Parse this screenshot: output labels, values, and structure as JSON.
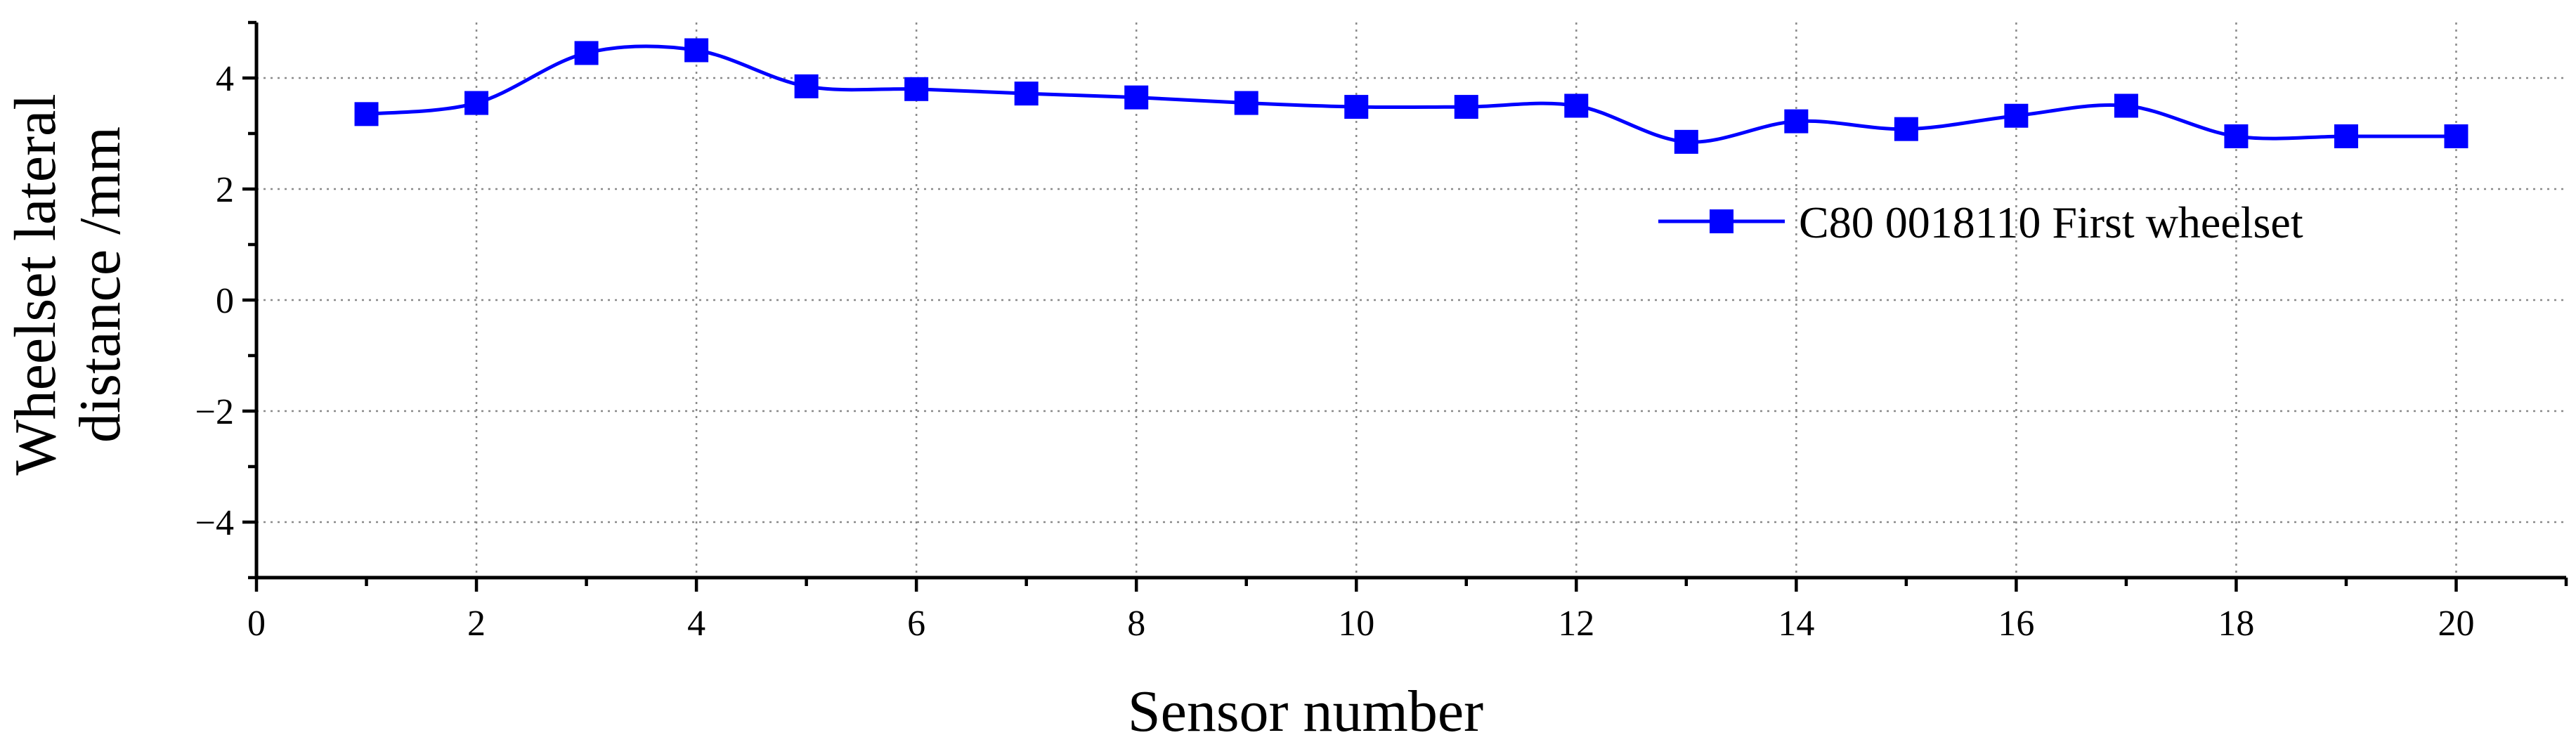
{
  "chart_data": {
    "type": "line",
    "title": "",
    "xlabel": "Sensor number",
    "ylabel_lines": [
      "Wheelset lateral",
      "distance /mm"
    ],
    "xlim": [
      0,
      21
    ],
    "ylim": [
      -5,
      5
    ],
    "xticks": [
      0,
      2,
      4,
      6,
      8,
      10,
      12,
      14,
      16,
      18,
      20
    ],
    "yticks": [
      -4,
      -2,
      0,
      2,
      4
    ],
    "ytick_labels": [
      "−4",
      "−2",
      "0",
      "2",
      "4"
    ],
    "grid": true,
    "legend_position": "right",
    "color": "#0000ff",
    "marker": "square",
    "series": [
      {
        "name": "C80 0018110 First wheelset",
        "x": [
          1,
          2,
          3,
          4,
          5,
          6,
          7,
          8,
          9,
          10,
          11,
          12,
          13,
          14,
          15,
          16,
          17,
          18,
          19,
          20
        ],
        "values": [
          3.35,
          3.55,
          4.45,
          4.5,
          3.85,
          3.8,
          3.72,
          3.65,
          3.55,
          3.48,
          3.48,
          3.5,
          2.85,
          3.22,
          3.08,
          3.32,
          3.5,
          2.95,
          2.95,
          2.95
        ]
      }
    ]
  }
}
